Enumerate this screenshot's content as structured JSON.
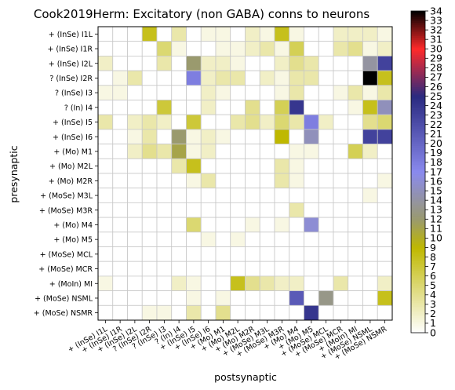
{
  "chart_data": {
    "type": "heatmap",
    "title": "Cook2019Herm: Excitatory (non GABA) conns to neurons",
    "xlabel": "postsynaptic",
    "ylabel": "presynaptic",
    "rows": [
      "+ (InSe) I1L",
      "+ (InSe) I1R",
      "+ (InSe) I2L",
      "? (InSe) I2R",
      "? (InSe) I3",
      "? (In) I4",
      "+ (InSe) I5",
      "+ (InSe) I6",
      "+ (Mo) M1",
      "+ (Mo) M2L",
      "+ (Mo) M2R",
      "+ (MoSe) M3L",
      "+ (MoSe) M3R",
      "+ (Mo) M4",
      "+ (Mo) M5",
      "+ (MoSe) MCL",
      "+ (MoSe) MCR",
      "+ (MoIn) MI",
      "+ (MoSe) NSML",
      "+ (MoSe) NSMR"
    ],
    "columns": [
      "+ (InSe) I1L",
      "+ (InSe) I1R",
      "+ (InSe) I2L",
      "? (InSe) I2R",
      "? (InSe) I3",
      "? (In) I4",
      "+ (InSe) I5",
      "+ (InSe) I6",
      "+ (Mo) M1",
      "+ (Mo) M2L",
      "+ (Mo) M2R",
      "+ (MoSe) M3L",
      "+ (MoSe) M3R",
      "+ (Mo) M4",
      "+ (Mo) M5",
      "+ (MoSe) MCL",
      "+ (MoSe) MCR",
      "+ (MoIn) MI",
      "+ (MoSe) NSML",
      "+ (MoSe) NSMR"
    ],
    "values": [
      [
        0,
        0,
        0,
        8,
        0,
        3,
        0,
        1,
        1,
        0,
        2,
        1,
        8,
        1,
        0,
        0,
        2,
        2,
        2,
        1
      ],
      [
        0,
        0,
        0,
        0,
        5,
        1,
        0,
        0,
        1,
        1,
        2,
        3,
        1,
        6,
        0,
        0,
        3,
        4,
        1,
        2
      ],
      [
        2,
        0,
        0,
        0,
        3,
        0,
        12,
        2,
        2,
        1,
        0,
        0,
        2,
        4,
        3,
        0,
        0,
        0,
        14,
        23
      ],
      [
        0,
        1,
        3,
        0,
        0,
        0,
        18,
        2,
        3,
        3,
        0,
        2,
        1,
        3,
        3,
        0,
        0,
        0,
        34,
        8
      ],
      [
        1,
        1,
        0,
        0,
        0,
        0,
        0,
        2,
        1,
        0,
        0,
        0,
        1,
        3,
        0,
        0,
        1,
        3,
        1,
        3
      ],
      [
        0,
        0,
        0,
        0,
        7,
        0,
        0,
        2,
        0,
        0,
        4,
        0,
        6,
        24,
        0,
        0,
        0,
        1,
        8,
        15
      ],
      [
        3,
        0,
        2,
        3,
        2,
        0,
        7,
        0,
        0,
        3,
        4,
        2,
        5,
        3,
        18,
        2,
        0,
        0,
        4,
        5
      ],
      [
        0,
        0,
        1,
        3,
        0,
        12,
        1,
        2,
        1,
        0,
        0,
        0,
        9,
        0,
        15,
        0,
        0,
        0,
        23,
        23
      ],
      [
        0,
        0,
        2,
        4,
        3,
        11,
        1,
        2,
        0,
        0,
        0,
        0,
        0,
        1,
        1,
        0,
        0,
        6,
        2,
        0
      ],
      [
        0,
        0,
        0,
        0,
        0,
        3,
        8,
        0,
        0,
        0,
        0,
        0,
        3,
        1,
        0,
        0,
        0,
        0,
        0,
        0
      ],
      [
        0,
        0,
        0,
        0,
        0,
        0,
        1,
        3,
        0,
        0,
        0,
        0,
        3,
        1,
        0,
        0,
        0,
        0,
        0,
        1
      ],
      [
        0,
        0,
        0,
        0,
        0,
        0,
        0,
        0,
        0,
        0,
        0,
        0,
        0,
        0,
        0,
        0,
        0,
        0,
        1,
        0
      ],
      [
        0,
        0,
        0,
        0,
        0,
        0,
        0,
        0,
        0,
        0,
        0,
        0,
        0,
        3,
        0,
        0,
        0,
        0,
        0,
        0
      ],
      [
        0,
        0,
        0,
        0,
        0,
        0,
        5,
        0,
        0,
        0,
        1,
        0,
        1,
        0,
        16,
        0,
        0,
        0,
        0,
        0
      ],
      [
        0,
        0,
        0,
        0,
        0,
        0,
        0,
        1,
        0,
        1,
        0,
        0,
        0,
        0,
        0,
        0,
        0,
        0,
        0,
        0
      ],
      [
        0,
        0,
        0,
        0,
        0,
        0,
        0,
        0,
        0,
        0,
        0,
        0,
        0,
        0,
        0,
        0,
        0,
        0,
        0,
        0
      ],
      [
        0,
        0,
        0,
        0,
        0,
        0,
        0,
        0,
        0,
        0,
        0,
        0,
        0,
        0,
        0,
        0,
        0,
        0,
        0,
        0
      ],
      [
        1,
        0,
        0,
        0,
        0,
        2,
        1,
        0,
        0,
        8,
        4,
        3,
        2,
        2,
        0,
        0,
        3,
        0,
        0,
        2
      ],
      [
        0,
        0,
        0,
        0,
        0,
        0,
        1,
        0,
        1,
        0,
        0,
        0,
        0,
        21,
        0,
        13,
        0,
        0,
        0,
        8
      ],
      [
        0,
        0,
        0,
        1,
        1,
        0,
        3,
        0,
        4,
        0,
        0,
        0,
        0,
        0,
        24,
        0,
        0,
        0,
        0,
        0
      ]
    ],
    "colorbar": {
      "vmin": 0,
      "vmax": 34,
      "ticks": [
        0,
        1,
        2,
        3,
        4,
        5,
        6,
        7,
        8,
        9,
        10,
        11,
        12,
        13,
        14,
        15,
        16,
        17,
        18,
        19,
        20,
        21,
        22,
        23,
        24,
        25,
        26,
        27,
        28,
        29,
        30,
        31,
        32,
        33,
        34
      ]
    },
    "colormap_stops": [
      "#ffffff",
      "#bfb800",
      "#9a9a6e",
      "#8a8aee",
      "#2a2a80",
      "#ff2a2a",
      "#000000"
    ],
    "grid": true
  }
}
